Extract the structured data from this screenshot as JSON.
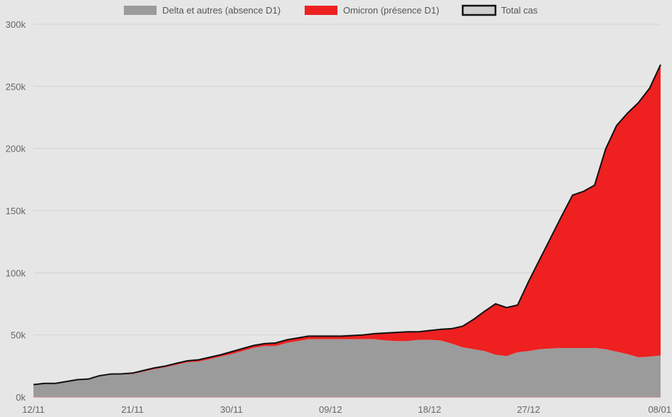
{
  "chart_data": {
    "type": "area",
    "stacked": true,
    "x": [
      "12/11",
      "13/11",
      "14/11",
      "15/11",
      "16/11",
      "17/11",
      "18/11",
      "19/11",
      "20/11",
      "21/11",
      "22/11",
      "23/11",
      "24/11",
      "25/11",
      "26/11",
      "27/11",
      "28/11",
      "29/11",
      "30/11",
      "01/12",
      "02/12",
      "03/12",
      "04/12",
      "05/12",
      "06/12",
      "07/12",
      "08/12",
      "09/12",
      "10/12",
      "11/12",
      "12/12",
      "13/12",
      "14/12",
      "15/12",
      "16/12",
      "17/12",
      "18/12",
      "19/12",
      "20/12",
      "21/12",
      "22/12",
      "23/12",
      "24/12",
      "25/12",
      "26/12",
      "27/12",
      "28/12",
      "29/12",
      "30/12",
      "31/12",
      "01/01",
      "02/01",
      "03/01",
      "04/01",
      "05/01",
      "06/01",
      "07/01",
      "08/01"
    ],
    "x_tick_labels": [
      "12/11",
      "21/11",
      "30/11",
      "09/12",
      "18/12",
      "27/12",
      "08/01"
    ],
    "series": [
      {
        "name": "Delta et autres (absence D1)",
        "color": "#9b9b9b",
        "values": [
          10000,
          11000,
          11000,
          12500,
          14000,
          14500,
          17000,
          18000,
          18000,
          18500,
          20500,
          22500,
          24000,
          26000,
          28000,
          28500,
          30500,
          32500,
          34500,
          37000,
          39500,
          41000,
          41000,
          43500,
          45000,
          46500,
          46500,
          46500,
          46500,
          46500,
          46500,
          46500,
          45500,
          45000,
          45000,
          46000,
          46000,
          45500,
          43000,
          40000,
          38500,
          37000,
          34000,
          33000,
          36000,
          37000,
          38500,
          39000,
          39500,
          39500,
          39500,
          39500,
          38500,
          36500,
          34500,
          32000,
          32500,
          33500
        ]
      },
      {
        "name": "Omicron (présence D1)",
        "color": "#ee2020",
        "values": [
          0,
          0,
          0,
          0,
          0,
          0,
          200,
          500,
          700,
          800,
          900,
          1000,
          1000,
          1200,
          1200,
          1500,
          1500,
          1500,
          2000,
          2000,
          2000,
          2000,
          2500,
          2500,
          2500,
          2500,
          2500,
          2500,
          2500,
          3000,
          3500,
          4500,
          6000,
          7000,
          7500,
          6500,
          7500,
          9000,
          12000,
          17000,
          24000,
          32000,
          41000,
          39000,
          38000,
          56000,
          72000,
          89000,
          106000,
          123000,
          126000,
          131000,
          161000,
          182000,
          194000,
          205000,
          216000,
          234000
        ]
      }
    ],
    "total": {
      "name": "Total cas",
      "color": "#111111",
      "values": [
        10000,
        11000,
        11000,
        12500,
        14000,
        14500,
        17200,
        18500,
        18700,
        19300,
        21400,
        23500,
        25000,
        27200,
        29200,
        30000,
        32000,
        34000,
        36500,
        39000,
        41500,
        43000,
        43500,
        46000,
        47500,
        49000,
        49000,
        49000,
        49000,
        49500,
        50000,
        51000,
        51500,
        52000,
        52500,
        52500,
        53500,
        54500,
        55000,
        57000,
        62500,
        69000,
        75000,
        72000,
        74000,
        93000,
        110500,
        128000,
        145500,
        162500,
        165500,
        170500,
        199500,
        218500,
        228500,
        237000,
        248500,
        267500
      ]
    },
    "ylim": [
      0,
      300000
    ],
    "y_tick_labels": [
      "0k",
      "50k",
      "100k",
      "150k",
      "200k",
      "250k",
      "300k"
    ],
    "grid": true,
    "legend_position": "top",
    "title": "",
    "xlabel": "",
    "ylabel": ""
  }
}
